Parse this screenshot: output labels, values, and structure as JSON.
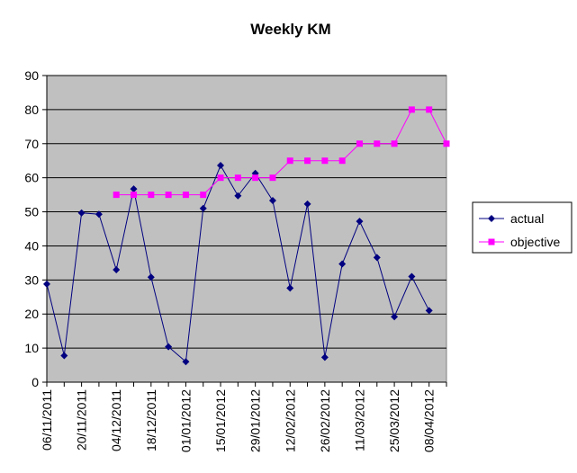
{
  "chart_data": {
    "type": "line",
    "title": "Weekly KM",
    "xlabel": "",
    "ylabel": "",
    "ylim": [
      0,
      90
    ],
    "yticks": [
      0,
      10,
      20,
      30,
      40,
      50,
      60,
      70,
      80,
      90
    ],
    "grid": true,
    "legend_position": "right",
    "x": [
      "06/11/2011",
      "13/11/2011",
      "20/11/2011",
      "27/11/2011",
      "04/12/2011",
      "11/12/2011",
      "18/12/2011",
      "25/12/2011",
      "01/01/2012",
      "08/01/2012",
      "15/01/2012",
      "22/01/2012",
      "29/01/2012",
      "05/02/2012",
      "12/02/2012",
      "19/02/2012",
      "26/02/2012",
      "04/03/2012",
      "11/03/2012",
      "18/03/2012",
      "25/03/2012",
      "01/04/2012",
      "08/04/2012",
      "15/04/2012"
    ],
    "x_tick_labels": [
      "06/11/2011",
      "20/11/2011",
      "04/12/2011",
      "18/12/2011",
      "01/01/2012",
      "15/01/2012",
      "29/01/2012",
      "12/02/2012",
      "26/02/2012",
      "11/03/2012",
      "25/03/2012",
      "08/04/2012"
    ],
    "series": [
      {
        "name": "actual",
        "color": "#000080",
        "marker": "diamond",
        "values": [
          28.8,
          7.8,
          49.7,
          49.3,
          33,
          56.7,
          30.8,
          10.4,
          6,
          51,
          63.6,
          54.7,
          61.3,
          53.3,
          27.6,
          52.3,
          7.3,
          34.7,
          47.2,
          36.6,
          19.2,
          31,
          21,
          null
        ]
      },
      {
        "name": "objective",
        "color": "#ff00ff",
        "marker": "square",
        "values": [
          null,
          null,
          null,
          null,
          55,
          55,
          55,
          55,
          55,
          55,
          60,
          60,
          60,
          60,
          65,
          65,
          65,
          65,
          70,
          70,
          70,
          80,
          80,
          70
        ]
      }
    ],
    "plot_background": "#c0c0c0"
  }
}
